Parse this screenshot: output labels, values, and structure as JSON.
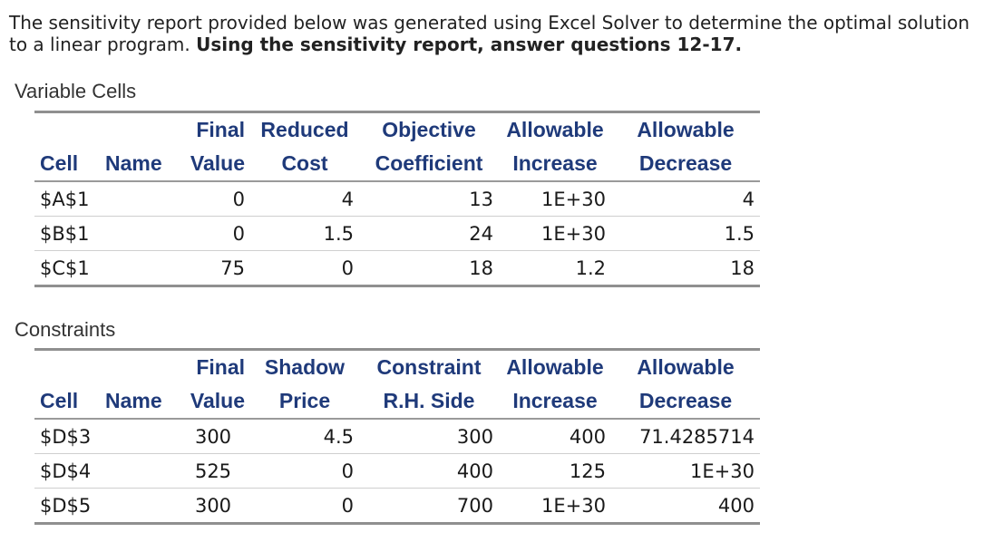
{
  "intro": {
    "text": "The sensitivity report provided below was generated using Excel Solver to determine the optimal solution to a linear program. ",
    "bold": "Using the sensitivity report, answer questions 12-17."
  },
  "variable_cells": {
    "title": "Variable Cells",
    "header_row1": [
      "",
      "",
      "Final",
      "Reduced",
      "Objective",
      "Allowable",
      "Allowable"
    ],
    "header_row2": [
      "Cell",
      "Name",
      "Value",
      "Cost",
      "Coefficient",
      "Increase",
      "Decrease"
    ],
    "rows": [
      [
        "$A$1",
        "",
        "0",
        "4",
        "13",
        "1E+30",
        "4"
      ],
      [
        "$B$1",
        "",
        "0",
        "1.5",
        "24",
        "1E+30",
        "1.5"
      ],
      [
        "$C$1",
        "",
        "75",
        "0",
        "18",
        "1.2",
        "18"
      ]
    ]
  },
  "constraints": {
    "title": "Constraints",
    "header_row1": [
      "",
      "",
      "Final",
      "Shadow",
      "Constraint",
      "Allowable",
      "Allowable"
    ],
    "header_row2": [
      "Cell",
      "Name",
      "Value",
      "Price",
      "R.H. Side",
      "Increase",
      "Decrease"
    ],
    "rows": [
      [
        "$D$3",
        "",
        "300",
        "4.5",
        "300",
        "400",
        "71.4285714"
      ],
      [
        "$D$4",
        "",
        "525",
        "0",
        "400",
        "125",
        "1E+30"
      ],
      [
        "$D$5",
        "",
        "300",
        "0",
        "700",
        "1E+30",
        "400"
      ]
    ]
  }
}
